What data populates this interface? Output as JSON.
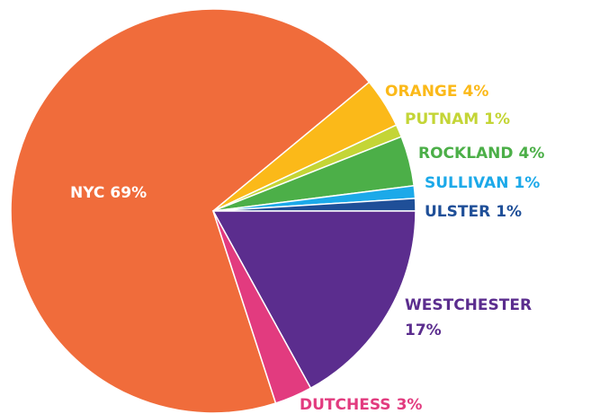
{
  "chart_data": {
    "type": "pie",
    "categories": [
      "NYC",
      "ORANGE",
      "PUTNAM",
      "ROCKLAND",
      "SULLIVAN",
      "ULSTER",
      "WESTCHESTER",
      "DUTCHESS"
    ],
    "values": [
      69,
      4,
      1,
      4,
      1,
      1,
      17,
      3
    ],
    "value_labels": [
      "69%",
      "4%",
      "1%",
      "4%",
      "1%",
      "1%",
      "17%",
      "3%"
    ],
    "colors": [
      "#f06c3b",
      "#fbb919",
      "#c4d536",
      "#4caf48",
      "#1ca9e9",
      "#1f4f98",
      "#5b2d8e",
      "#e23b7f"
    ]
  }
}
